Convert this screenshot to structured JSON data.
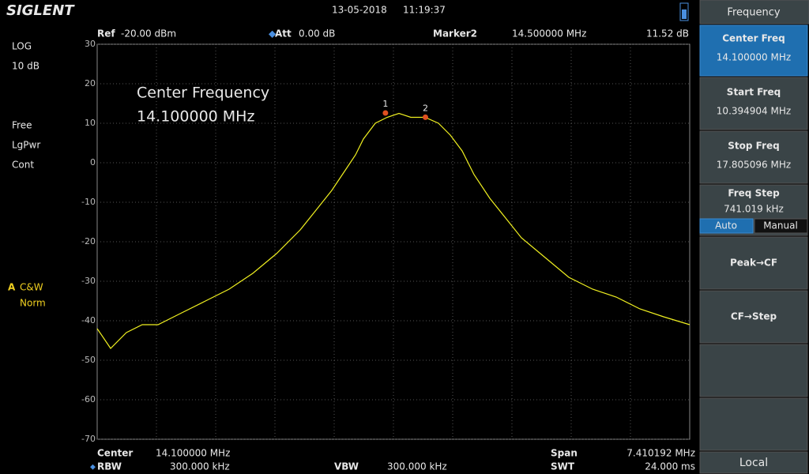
{
  "header": {
    "brand": "SIGLENT",
    "date": "13-05-2018",
    "time": "11:19:37"
  },
  "left_panel": {
    "scale_type": "LOG",
    "scale_div": "10 dB",
    "trigger": "Free",
    "detector": "LgPwr",
    "sweep": "Cont",
    "trace": "A",
    "trace_mode": "C&W",
    "trace_detect": "Norm"
  },
  "info_bar": {
    "ref_label": "Ref",
    "ref_value": "-20.00 dBm",
    "att_label": "Att",
    "att_value": "0.00 dB",
    "marker_label": "Marker2",
    "marker_freq": "14.500000 MHz",
    "marker_level": "11.52 dB"
  },
  "annotation": {
    "title": "Center Frequency",
    "value": "14.100000 MHz"
  },
  "chart_data": {
    "type": "line",
    "color": "#f0f020",
    "x": [
      10.395,
      10.563,
      10.76,
      10.958,
      11.156,
      11.452,
      11.749,
      12.045,
      12.341,
      12.638,
      12.934,
      13.132,
      13.329,
      13.527,
      13.626,
      13.724,
      13.873,
      14.021,
      14.169,
      14.317,
      14.495,
      14.663,
      14.811,
      14.959,
      15.108,
      15.305,
      15.503,
      15.7,
      15.997,
      16.293,
      16.59,
      16.886,
      17.182,
      17.479,
      17.805
    ],
    "values": [
      -42,
      -47,
      -43,
      -41,
      -41,
      -38,
      -35,
      -32,
      -28,
      -23,
      -17,
      -12,
      -7,
      -1,
      2,
      6,
      10,
      11.5,
      12.5,
      11.5,
      11.5,
      10,
      7,
      3,
      -3,
      -9,
      -14,
      -19,
      -24,
      -29,
      -32,
      -34,
      -37,
      -39,
      -41
    ],
    "xlim": [
      10.394904,
      17.805096
    ],
    "ylim": [
      -70,
      30
    ],
    "yticks": [
      30,
      20,
      10,
      0,
      -10,
      -20,
      -30,
      -40,
      -50,
      -60,
      -70
    ],
    "grid": true,
    "markers": [
      {
        "label": "1",
        "x": 14.0,
        "value": 12.6
      },
      {
        "label": "2",
        "x": 14.5,
        "value": 11.52
      }
    ]
  },
  "footer": {
    "center_label": "Center",
    "center_value": "14.100000 MHz",
    "span_label": "Span",
    "span_value": "7.410192 MHz",
    "rbw_label": "RBW",
    "rbw_value": "300.000 kHz",
    "vbw_label": "VBW",
    "vbw_value": "300.000 kHz",
    "swt_label": "SWT",
    "swt_value": "24.000 ms"
  },
  "menu": {
    "title": "Frequency",
    "keys": [
      {
        "label": "Center Freq",
        "value": "14.100000 MHz"
      },
      {
        "label": "Start Freq",
        "value": "10.394904 MHz"
      },
      {
        "label": "Stop Freq",
        "value": "17.805096 MHz"
      },
      {
        "label": "Freq Step",
        "value": "741.019 kHz"
      }
    ],
    "step_modes": [
      "Auto",
      "Manual"
    ],
    "actions": [
      "Peak→CF",
      "CF→Step"
    ],
    "status": "Local"
  }
}
